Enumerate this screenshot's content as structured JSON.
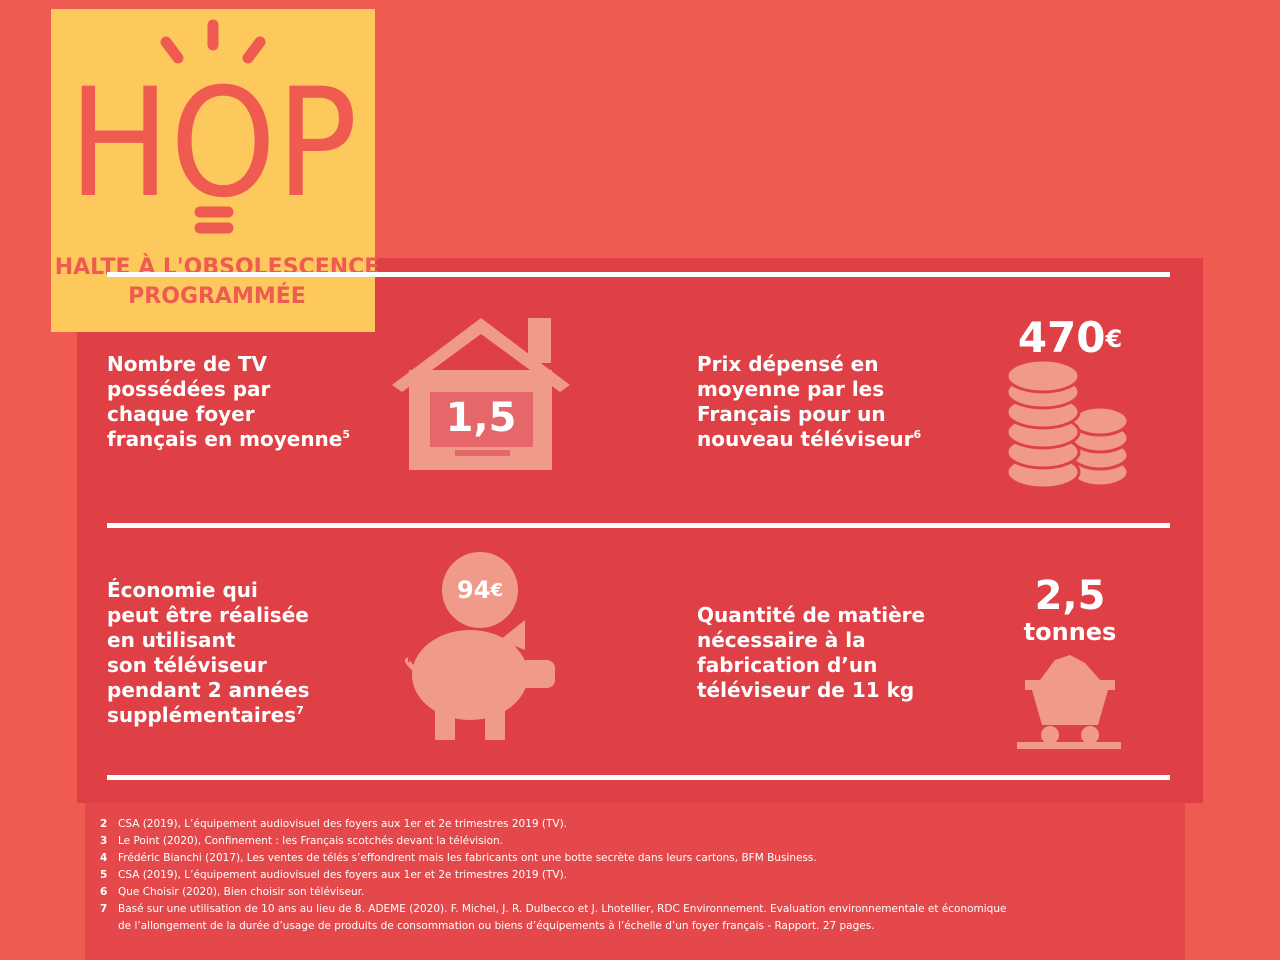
{
  "logo": {
    "title": "HOP",
    "tagline": [
      "HALTE À L'OBSOLESCENCE",
      "PROGRAMMÉE"
    ]
  },
  "stats": [
    {
      "label": [
        "Nombre de TV",
        "possédées par",
        "chaque foyer",
        "français en moyenne"
      ],
      "note": "5",
      "value": "1,5"
    },
    {
      "label": [
        "Prix dépensé en",
        "moyenne par les",
        "Français pour un",
        "nouveau téléviseur"
      ],
      "note": "6",
      "value": "470",
      "unit": "€"
    },
    {
      "label": [
        "Économie qui",
        "peut être réalisée",
        "en utilisant",
        "son téléviseur",
        "pendant 2 années",
        "supplémentaires"
      ],
      "note": "7",
      "value": "94",
      "unit": "€"
    },
    {
      "label": [
        "Quantité de matière",
        "nécessaire à la",
        "fabrication d’un",
        "téléviseur de 11 kg"
      ],
      "value": "2,5",
      "unit": "tonnes"
    }
  ],
  "footnotes": [
    {
      "number": "2",
      "text": [
        "CSA (2019), L’équipement audiovisuel des foyers aux 1er et 2e trimestres 2019 (TV)."
      ]
    },
    {
      "number": "3",
      "text": [
        "Le Point (2020), Confinement : les Français scotchés devant la télévision."
      ]
    },
    {
      "number": "4",
      "text": [
        "Frédéric Bianchi (2017), Les ventes de télés s’effondrent mais les fabricants ont une botte secrète dans leurs cartons, BFM Business."
      ]
    },
    {
      "number": "5",
      "text": [
        "CSA (2019), L’équipement audiovisuel des foyers aux 1er et 2e trimestres 2019 (TV)."
      ]
    },
    {
      "number": "6",
      "text": [
        "Que Choisir (2020), Bien choisir son téléviseur."
      ]
    },
    {
      "number": "7",
      "text": [
        "Basé sur une utilisation de 10 ans au lieu de 8. ADEME (2020). F. Michel, J. R. Dulbecco et J. Lhotellier, RDC Environnement. Evaluation environnementale et économique",
        "de l’allongement de la durée d’usage de produits de consommation ou biens d’équipements à l’échelle d’un foyer français - Rapport. 27 pages."
      ]
    }
  ]
}
